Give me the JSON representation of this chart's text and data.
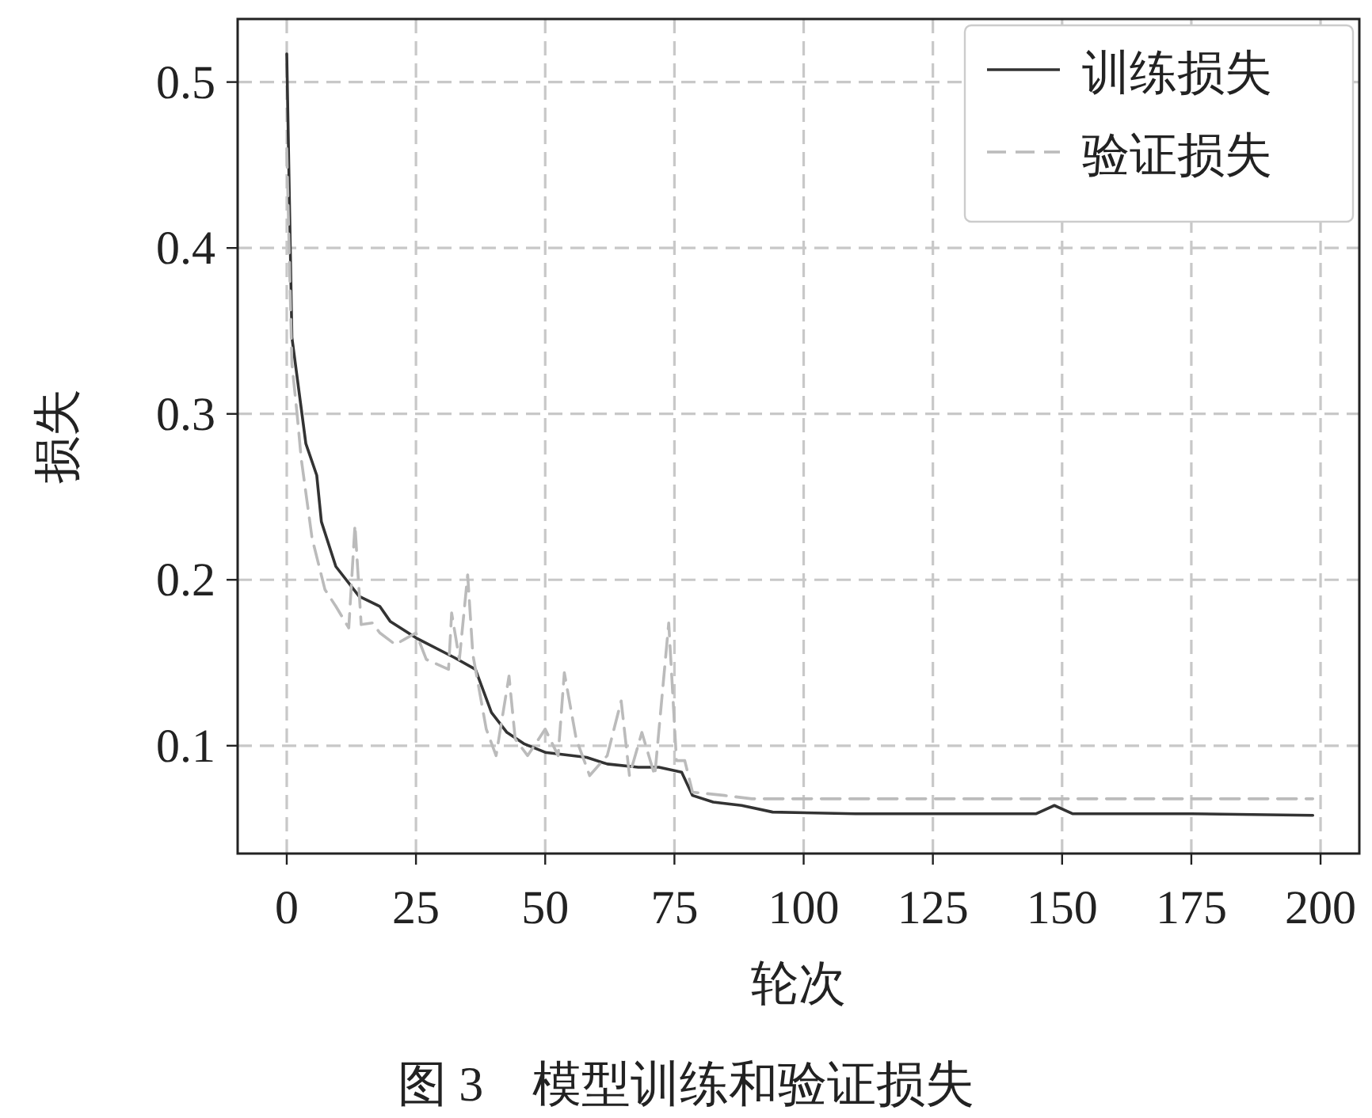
{
  "chart_data": {
    "type": "line",
    "xlabel": "轮次",
    "ylabel": "损失",
    "annotations": [
      "图 3　模型训练和验证损失"
    ],
    "xlim": [
      -9.5,
      207.5
    ],
    "ylim": [
      0.035,
      0.538
    ],
    "xticks": [
      0,
      25,
      50,
      75,
      100,
      125,
      150,
      175,
      200
    ],
    "yticks": [
      0.1,
      0.2,
      0.3,
      0.4,
      0.5
    ],
    "grid": true,
    "legend": "top right",
    "series": [
      {
        "name": "训练损失",
        "color": "#333333",
        "line_style": "solid",
        "x": [
          0,
          1,
          3.7,
          5.8,
          6.7,
          9.5,
          14,
          18,
          20,
          25,
          32.5,
          36.5,
          39.6,
          42.6,
          46,
          50,
          58,
          62,
          68,
          72,
          76.4,
          78.5,
          82.5,
          88,
          94,
          110,
          130,
          145,
          148.5,
          152,
          175,
          198.5
        ],
        "values": [
          0.517,
          0.346,
          0.282,
          0.263,
          0.235,
          0.208,
          0.19,
          0.184,
          0.175,
          0.165,
          0.153,
          0.146,
          0.12,
          0.108,
          0.101,
          0.096,
          0.093,
          0.089,
          0.087,
          0.087,
          0.084,
          0.07,
          0.066,
          0.064,
          0.06,
          0.059,
          0.059,
          0.059,
          0.064,
          0.059,
          0.059,
          0.058
        ]
      },
      {
        "name": "验证损失",
        "color": "#bbbbbb",
        "line_style": "dashed",
        "x": [
          0,
          1,
          2,
          2.8,
          4.9,
          7.4,
          9.5,
          12,
          13.2,
          14.4,
          16.6,
          18,
          21,
          25,
          27,
          31.3,
          31.9,
          33.4,
          35,
          36,
          38.6,
          40.5,
          43,
          44.2,
          46.6,
          50,
          52.5,
          53.7,
          56,
          58.6,
          62,
          64.7,
          66.3,
          68.7,
          71.2,
          73.9,
          75.4,
          77,
          78.5,
          84.7,
          90,
          120,
          150,
          180,
          198.5
        ],
        "values": [
          0.46,
          0.33,
          0.3,
          0.273,
          0.225,
          0.194,
          0.184,
          0.171,
          0.233,
          0.173,
          0.174,
          0.168,
          0.161,
          0.168,
          0.152,
          0.146,
          0.18,
          0.152,
          0.203,
          0.155,
          0.11,
          0.094,
          0.142,
          0.104,
          0.094,
          0.11,
          0.094,
          0.144,
          0.104,
          0.082,
          0.094,
          0.127,
          0.082,
          0.108,
          0.082,
          0.174,
          0.091,
          0.091,
          0.072,
          0.07,
          0.068,
          0.068,
          0.068,
          0.068,
          0.068
        ]
      }
    ]
  }
}
